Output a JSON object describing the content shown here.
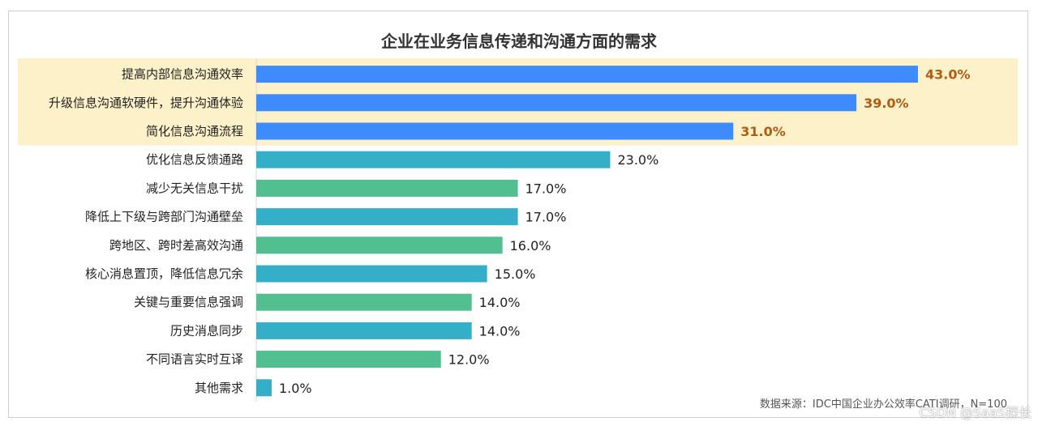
{
  "chart_data": {
    "type": "bar",
    "orientation": "horizontal",
    "title": "企业在业务信息传递和沟通方面的需求",
    "categories": [
      "提高内部信息沟通效率",
      "升级信息沟通软硬件，提升沟通体验",
      "简化信息沟通流程",
      "优化信息反馈通路",
      "减少无关信息干扰",
      "降低上下级与跨部门沟通壁垒",
      "跨地区、跨时差高效沟通",
      "核心消息置顶，降低信息冗余",
      "关键与重要信息强调",
      "历史消息同步",
      "不同语言实时互译",
      "其他需求"
    ],
    "values": [
      43.0,
      39.0,
      31.0,
      23.0,
      17.0,
      17.0,
      16.0,
      15.0,
      14.0,
      14.0,
      12.0,
      1.0
    ],
    "value_labels": [
      "43.0%",
      "39.0%",
      "31.0%",
      "23.0%",
      "17.0%",
      "17.0%",
      "16.0%",
      "15.0%",
      "14.0%",
      "14.0%",
      "12.0%",
      "1.0%"
    ],
    "bar_colors": [
      "#3d8bfd",
      "#3d8bfd",
      "#3d8bfd",
      "#35afc8",
      "#52bf90",
      "#35afc8",
      "#52bf90",
      "#35afc8",
      "#52bf90",
      "#35afc8",
      "#52bf90",
      "#35afc8"
    ],
    "highlighted_top": 3,
    "highlight_color": "#fcf1c8",
    "highlight_label_color": "#b35a14",
    "xlim": [
      0,
      43
    ],
    "grid": false,
    "legend": "none"
  },
  "source_note": "数据来源：IDC中国企业办公效率CATI调研，N=100",
  "watermark": "CSDN @SaaS探长"
}
